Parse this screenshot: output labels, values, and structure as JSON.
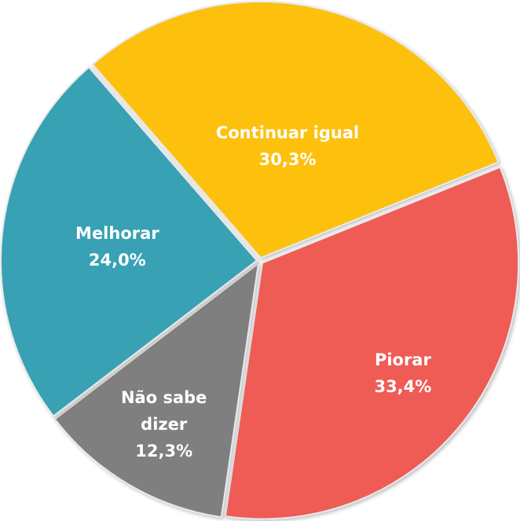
{
  "chart_data": {
    "type": "pie",
    "categories": [
      "Continuar igual",
      "Piorar",
      "Não sabe dizer",
      "Melhorar"
    ],
    "values": [
      30.3,
      33.4,
      12.3,
      24.0
    ],
    "value_labels": [
      "30,3%",
      "33,4%",
      "12,3%",
      "24,0%"
    ],
    "colors": [
      "#fdc010",
      "#ee5b55",
      "#7f7f7f",
      "#37a1b4"
    ]
  }
}
